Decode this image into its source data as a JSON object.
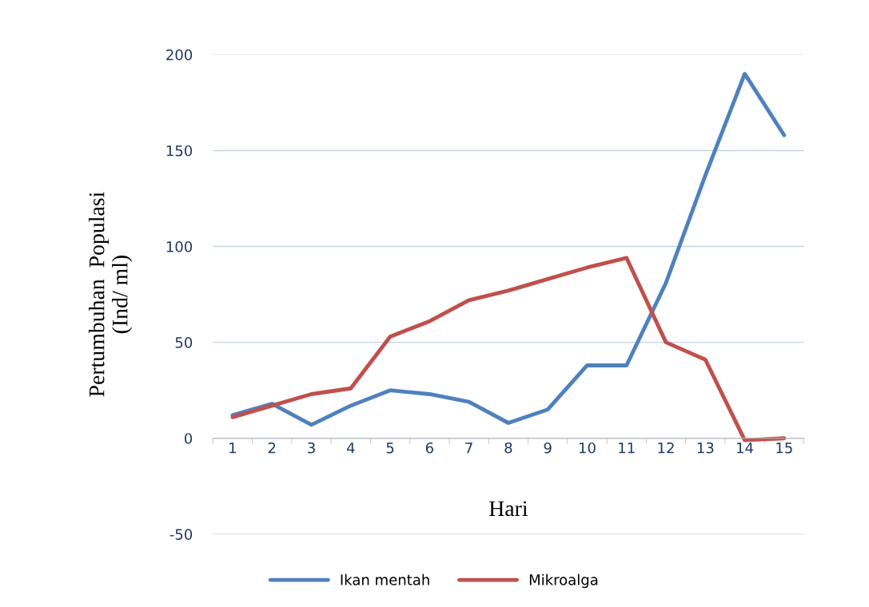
{
  "chart_data": {
    "type": "line",
    "xlabel": "Hari",
    "ylabel": "Pertumbuhan  Populasi\n(Ind/ ml)",
    "categories": [
      "1",
      "2",
      "3",
      "4",
      "5",
      "6",
      "7",
      "8",
      "9",
      "10",
      "11",
      "12",
      "13",
      "14",
      "15"
    ],
    "series": [
      {
        "name": "Ikan mentah",
        "color": "#4f81bd",
        "values": [
          12,
          18,
          7,
          17,
          25,
          23,
          19,
          8,
          15,
          38,
          38,
          81,
          137,
          190,
          158
        ]
      },
      {
        "name": "Mikroalga",
        "color": "#c0504d",
        "values": [
          11,
          17,
          23,
          26,
          53,
          61,
          72,
          77,
          83,
          89,
          94,
          50,
          41,
          -1,
          0
        ]
      }
    ],
    "ylim": [
      -50,
      200
    ],
    "yticks": [
      -50,
      0,
      50,
      100,
      150,
      200
    ],
    "grid": "y",
    "legend": "bottom",
    "marker": "none",
    "line_style": "solid"
  }
}
